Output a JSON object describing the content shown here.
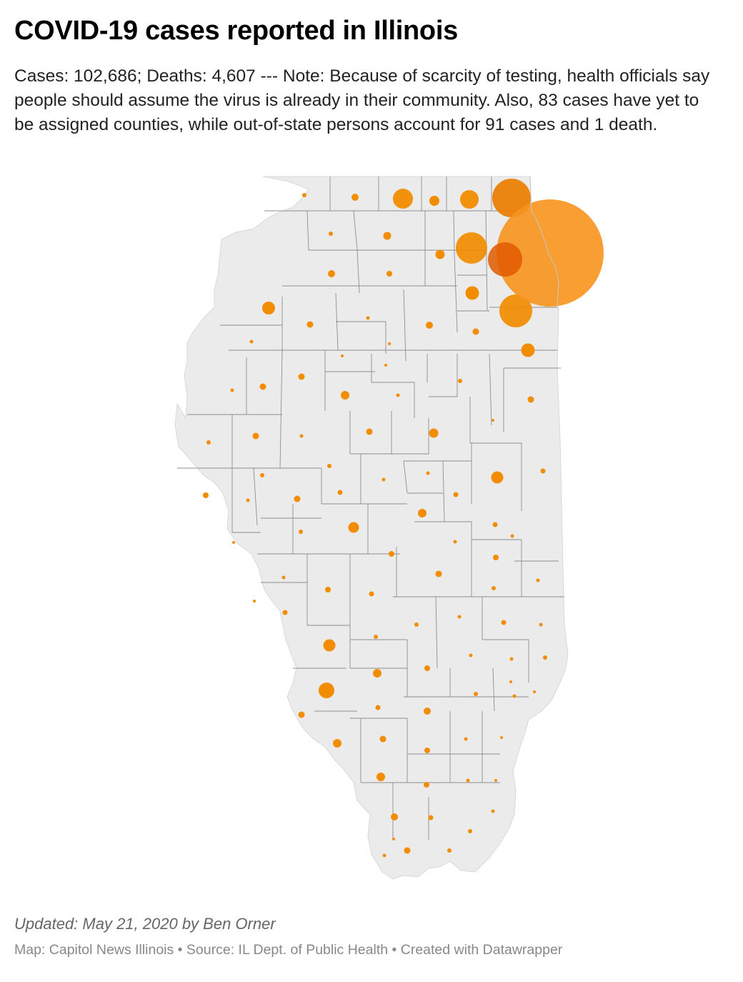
{
  "header": {
    "title": "COVID-19 cases reported in Illinois",
    "description": "Cases: 102,686; Deaths: 4,607 --- Note: Because of scarcity of testing, health officials say people should assume the virus is already in their community. Also, 83 cases have yet to be assigned counties, while out-of-state persons account for 91 cases and 1 death."
  },
  "map": {
    "colors": {
      "land": "#ebebeb",
      "border": "#8e8e8e",
      "bubble": "#f28c00",
      "bubble_cook": "#f7941d",
      "overlap": "#e05a00"
    },
    "bubbles": [
      {
        "id": "cook",
        "kind": "cook"
      },
      {
        "id": "lake",
        "kind": "big"
      },
      {
        "id": "dupage",
        "kind": "overlap"
      },
      {
        "id": "kane",
        "kind": "big"
      },
      {
        "id": "will",
        "kind": "big"
      },
      {
        "id": "winnebago",
        "kind": "big"
      },
      {
        "id": "mchenry",
        "kind": "big"
      },
      {
        "id": "kendall",
        "kind": "mid"
      },
      {
        "id": "kankakee",
        "kind": "mid"
      },
      {
        "id": "stclair",
        "kind": "mid"
      },
      {
        "id": "madison",
        "kind": "mid"
      },
      {
        "id": "rockisland",
        "kind": "mid"
      },
      {
        "id": "peoria",
        "kind": "mid"
      },
      {
        "id": "champaign",
        "kind": "mid"
      }
    ]
  },
  "footer": {
    "updated": "Updated: May 21, 2020 by Ben Orner",
    "credits": "Map: Capitol News Illinois • Source: IL Dept. of Public Health • Created with Datawrapper"
  }
}
